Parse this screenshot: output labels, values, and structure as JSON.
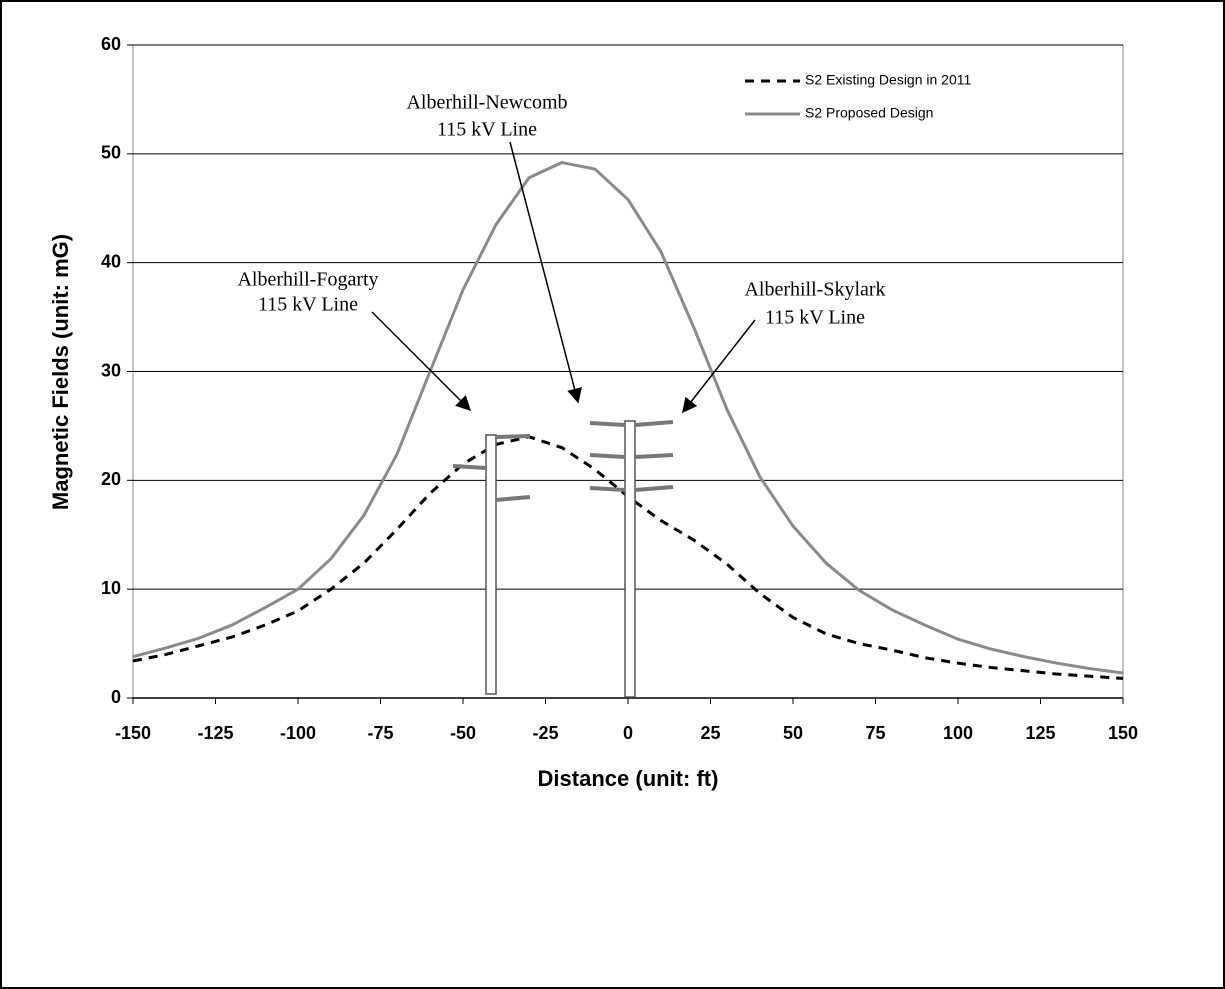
{
  "chart_data": {
    "type": "line",
    "x_label": "Distance (unit: ft)",
    "y_label": "Magnetic Fields (unit: mG)",
    "x": [
      -150,
      -140,
      -130,
      -120,
      -110,
      -100,
      -90,
      -80,
      -70,
      -60,
      -50,
      -40,
      -30,
      -20,
      -10,
      0,
      10,
      20,
      30,
      40,
      50,
      60,
      70,
      80,
      90,
      100,
      110,
      120,
      130,
      140,
      150
    ],
    "series": [
      {
        "name": "S2 Existing Design in 2011",
        "color": "#000000",
        "dash": true,
        "values": [
          3.4,
          4.0,
          4.8,
          5.6,
          6.7,
          8.0,
          10.0,
          12.4,
          15.5,
          18.8,
          21.5,
          23.3,
          24.0,
          23.0,
          21.0,
          18.5,
          16.3,
          14.5,
          12.3,
          9.6,
          7.4,
          5.9,
          5.0,
          4.4,
          3.7,
          3.2,
          2.8,
          2.5,
          2.2,
          2.0,
          1.8
        ]
      },
      {
        "name": "S2 Proposed Design",
        "color": "#8a8a8a",
        "dash": false,
        "values": [
          3.8,
          4.6,
          5.5,
          6.7,
          8.3,
          10.0,
          12.8,
          16.8,
          22.4,
          30.0,
          37.5,
          43.5,
          47.8,
          49.2,
          48.6,
          45.8,
          41.0,
          34.0,
          26.5,
          20.3,
          15.8,
          12.4,
          9.9,
          8.1,
          6.7,
          5.4,
          4.5,
          3.8,
          3.2,
          2.7,
          2.3
        ]
      }
    ],
    "xlim": [
      -150,
      150
    ],
    "xticks": [
      -150,
      -125,
      -100,
      -75,
      -50,
      -25,
      0,
      25,
      50,
      75,
      100,
      125,
      150
    ],
    "ylim": [
      0,
      60
    ],
    "yticks": [
      0,
      10,
      20,
      30,
      40,
      50,
      60
    ],
    "grid": true,
    "legend": "top-right",
    "annotations": [
      {
        "lines": [
          "Alberhill-Newcomb",
          "115 kV Line"
        ]
      },
      {
        "lines": [
          "Alberhill-Fogarty",
          "115 kV Line"
        ]
      },
      {
        "lines": [
          "Alberhill-Skylark",
          "115 kV Line"
        ]
      }
    ]
  }
}
